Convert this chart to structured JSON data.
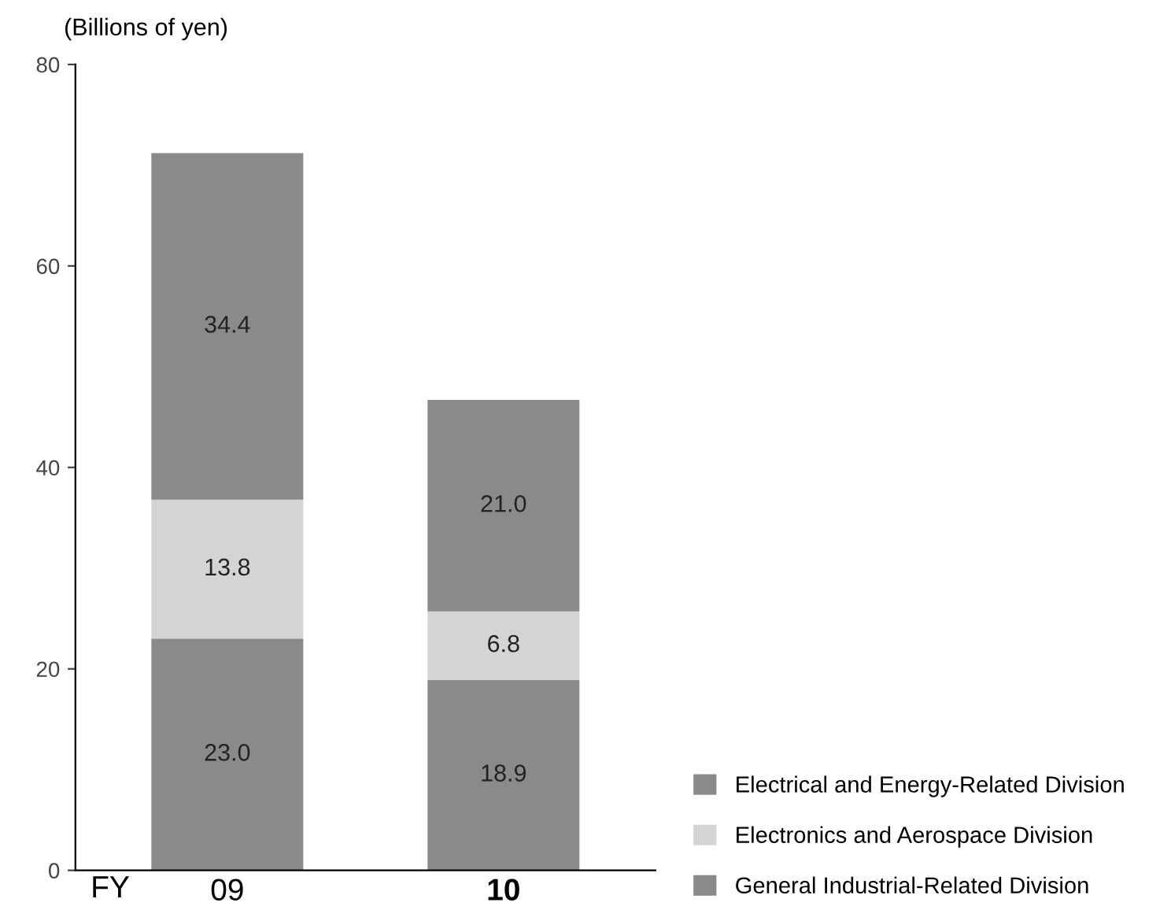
{
  "chart_data": {
    "type": "bar",
    "stacked": true,
    "ylabel": "(Billions of yen)",
    "xlabel": "FY",
    "categories": [
      "09",
      "10"
    ],
    "series": [
      {
        "name": "General Industrial-Related Division",
        "color": "#8a8a8a",
        "values": [
          23.0,
          18.9
        ],
        "value_labels": [
          "23.0",
          "18.9"
        ]
      },
      {
        "name": "Electronics and Aerospace Division",
        "color": "#d4d4d4",
        "values": [
          13.8,
          6.8
        ],
        "value_labels": [
          "13.8",
          "6.8"
        ]
      },
      {
        "name": "Electrical and Energy-Related Division",
        "color": "#8a8a8a",
        "values": [
          34.4,
          21.0
        ],
        "value_labels": [
          "34.4",
          "21.0"
        ]
      }
    ],
    "ylim": [
      0,
      80
    ],
    "yticks": [
      0,
      20,
      40,
      60,
      80
    ],
    "grid": false,
    "legend": "bottom right"
  }
}
